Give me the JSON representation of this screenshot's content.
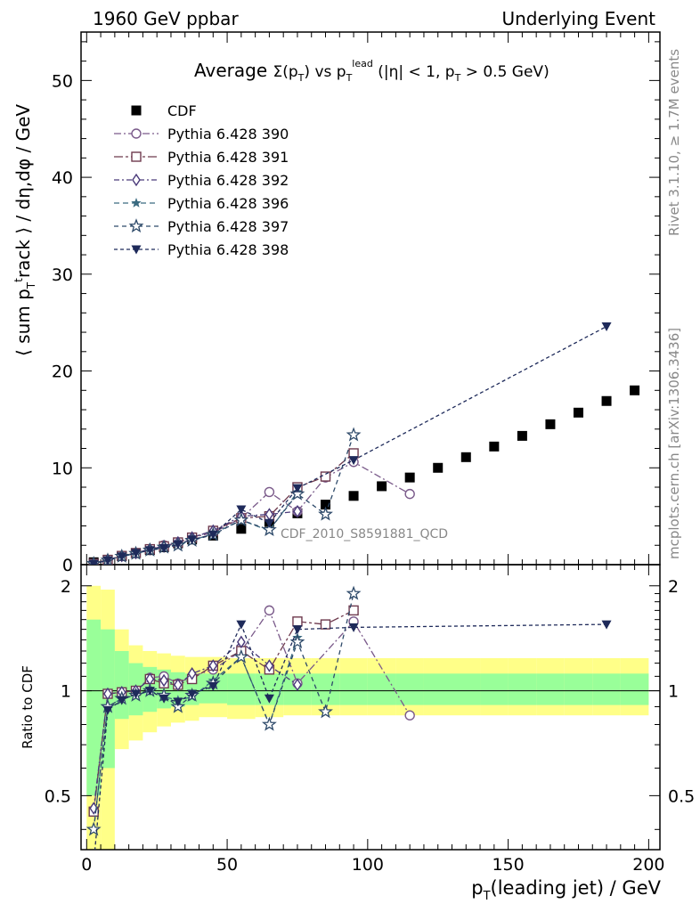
{
  "header": {
    "left": "1960 GeV ppbar",
    "right": "Underlying Event"
  },
  "side_labels": {
    "rivet": "Rivet 3.1.10, ≥ 1.7M events",
    "mcplots": "mcplots.cern.ch [arXiv:1306.3436]"
  },
  "chart_data": [
    {
      "type": "scatter",
      "title": "Average Σ(pT) vs pT^lead (|η| < 1, pT > 0.5 GeV)",
      "ylabel": "⟨ sum pT track ⟩ / dη,dφ / GeV",
      "xlim": [
        -2,
        204
      ],
      "ylim": [
        0,
        55
      ],
      "yticks": [
        0,
        10,
        20,
        30,
        40,
        50
      ],
      "legend_position": "top-left",
      "watermark": "CDF_2010_S8591881_QCD",
      "series": [
        {
          "name": "CDF",
          "color": "#000000",
          "marker": "filled-square",
          "x": [
            2.5,
            7.5,
            12.5,
            17.5,
            22.5,
            27.5,
            32.5,
            37.5,
            45,
            55,
            65,
            75,
            85,
            95,
            105,
            115,
            125,
            135,
            145,
            155,
            165,
            175,
            185,
            195
          ],
          "y": [
            0.25,
            0.5,
            0.9,
            1.2,
            1.5,
            1.8,
            2.2,
            2.6,
            3.0,
            3.7,
            4.4,
            5.3,
            6.2,
            7.1,
            8.1,
            9.0,
            10.0,
            11.1,
            12.2,
            13.3,
            14.5,
            15.7,
            16.9,
            18.0
          ]
        },
        {
          "name": "Pythia 6.428 390",
          "color": "#7a5a8a",
          "marker": "open-circle",
          "dash": "8,3,2,3",
          "x": [
            2.5,
            7.5,
            12.5,
            17.5,
            22.5,
            27.5,
            32.5,
            37.5,
            45,
            55,
            65,
            75,
            85,
            95,
            115
          ],
          "y": [
            0.1,
            0.5,
            0.9,
            1.2,
            1.6,
            2.0,
            2.3,
            2.8,
            3.3,
            4.8,
            7.5,
            5.5,
            9.0,
            10.6,
            7.3
          ]
        },
        {
          "name": "Pythia 6.428 391",
          "color": "#6e3a4e",
          "marker": "open-square",
          "dash": "10,3,3,3",
          "x": [
            2.5,
            7.5,
            12.5,
            17.5,
            22.5,
            27.5,
            32.5,
            37.5,
            45,
            55,
            65,
            75,
            85,
            95
          ],
          "y": [
            0.1,
            0.5,
            0.9,
            1.2,
            1.6,
            1.9,
            2.3,
            2.8,
            3.5,
            4.8,
            5.0,
            8.0,
            9.1,
            11.5
          ]
        },
        {
          "name": "Pythia 6.428 392",
          "color": "#4a3a7a",
          "marker": "open-diamond",
          "dash": "6,3,2,3",
          "x": [
            2.5,
            7.5,
            12.5,
            17.5,
            22.5,
            27.5,
            32.5,
            37.5,
            45,
            55,
            65,
            75
          ],
          "y": [
            0.1,
            0.5,
            0.9,
            1.2,
            1.6,
            1.9,
            2.3,
            2.8,
            3.5,
            5.0,
            5.2,
            5.5
          ]
        },
        {
          "name": "Pythia 6.428 396",
          "color": "#3a6a80",
          "marker": "filled-star",
          "dash": "6,4",
          "x": [
            2.5,
            7.5,
            12.5,
            17.5,
            22.5,
            27.5,
            32.5,
            37.5,
            45,
            55,
            65,
            75
          ],
          "y": [
            0.1,
            0.45,
            0.85,
            1.15,
            1.5,
            1.8,
            2.1,
            2.5,
            3.2,
            4.6,
            3.5,
            7.5
          ]
        },
        {
          "name": "Pythia 6.428 397",
          "color": "#2e4a6a",
          "marker": "open-star",
          "dash": "5,4",
          "x": [
            2.5,
            7.5,
            12.5,
            17.5,
            22.5,
            27.5,
            32.5,
            37.5,
            45,
            55,
            65,
            75,
            85,
            95
          ],
          "y": [
            0.1,
            0.45,
            0.85,
            1.15,
            1.5,
            1.8,
            2.0,
            2.5,
            3.1,
            4.6,
            3.6,
            7.3,
            5.2,
            13.4
          ]
        },
        {
          "name": "Pythia 6.428 398",
          "color": "#1e2a5a",
          "marker": "filled-triangle-down",
          "dash": "4,3",
          "x": [
            2.5,
            7.5,
            12.5,
            17.5,
            22.5,
            27.5,
            32.5,
            37.5,
            45,
            55,
            65,
            75,
            95,
            185
          ],
          "y": [
            0.08,
            0.45,
            0.85,
            1.2,
            1.5,
            1.7,
            2.1,
            2.6,
            3.1,
            5.7,
            4.3,
            7.9,
            10.8,
            24.6
          ]
        }
      ]
    },
    {
      "type": "scatter",
      "xlabel": "pT(leading jet) / GeV",
      "ylabel": "Ratio to CDF",
      "xlim": [
        -2,
        204
      ],
      "ylim": [
        0.35,
        2.3
      ],
      "yticks": [
        0.5,
        1,
        2
      ],
      "xticks": [
        0,
        50,
        100,
        150,
        200
      ],
      "bands": {
        "x_edges": [
          0,
          5,
          10,
          15,
          20,
          25,
          30,
          35,
          40,
          50,
          60,
          70,
          80,
          90,
          100,
          110,
          120,
          130,
          140,
          150,
          160,
          170,
          180,
          190,
          200
        ],
        "inner_low": [
          0.5,
          0.6,
          0.83,
          0.85,
          0.87,
          0.89,
          0.9,
          0.91,
          0.92,
          0.91,
          0.91,
          0.91,
          0.91,
          0.91,
          0.91,
          0.91,
          0.91,
          0.91,
          0.91,
          0.91,
          0.91,
          0.91,
          0.91,
          0.91
        ],
        "inner_high": [
          1.6,
          1.5,
          1.3,
          1.2,
          1.17,
          1.15,
          1.13,
          1.12,
          1.12,
          1.12,
          1.12,
          1.12,
          1.12,
          1.12,
          1.12,
          1.12,
          1.12,
          1.12,
          1.12,
          1.12,
          1.12,
          1.12,
          1.12,
          1.12
        ],
        "outer_low": [
          0.3,
          0.3,
          0.68,
          0.72,
          0.76,
          0.79,
          0.81,
          0.82,
          0.84,
          0.83,
          0.84,
          0.85,
          0.85,
          0.85,
          0.85,
          0.85,
          0.85,
          0.85,
          0.85,
          0.85,
          0.85,
          0.85,
          0.85,
          0.85
        ],
        "outer_high": [
          2.0,
          1.95,
          1.5,
          1.35,
          1.3,
          1.28,
          1.26,
          1.25,
          1.25,
          1.24,
          1.24,
          1.24,
          1.24,
          1.24,
          1.24,
          1.24,
          1.24,
          1.24,
          1.24,
          1.24,
          1.24,
          1.24,
          1.24,
          1.24
        ]
      },
      "series": [
        {
          "name": "Pythia 6.428 390",
          "color": "#7a5a8a",
          "marker": "open-circle",
          "dash": "8,3,2,3",
          "x": [
            2.5,
            7.5,
            12.5,
            17.5,
            22.5,
            27.5,
            32.5,
            37.5,
            45,
            55,
            65,
            75,
            95,
            115
          ],
          "y": [
            0.45,
            0.98,
            0.99,
            1.0,
            1.09,
            1.1,
            1.05,
            1.1,
            1.15,
            1.3,
            1.7,
            1.05,
            1.58,
            0.85
          ]
        },
        {
          "name": "Pythia 6.428 391",
          "color": "#6e3a4e",
          "marker": "open-square",
          "dash": "10,3,3,3",
          "x": [
            2.5,
            7.5,
            12.5,
            17.5,
            22.5,
            27.5,
            32.5,
            37.5,
            45,
            55,
            65,
            75,
            85,
            95
          ],
          "y": [
            0.45,
            0.98,
            0.99,
            1.0,
            1.08,
            1.05,
            1.04,
            1.08,
            1.18,
            1.3,
            1.15,
            1.58,
            1.55,
            1.7
          ]
        },
        {
          "name": "Pythia 6.428 392",
          "color": "#4a3a7a",
          "marker": "open-diamond",
          "dash": "6,3,2,3",
          "x": [
            2.5,
            7.5,
            12.5,
            17.5,
            22.5,
            27.5,
            32.5,
            37.5,
            45,
            55,
            65,
            75
          ],
          "y": [
            0.46,
            0.98,
            0.99,
            1.0,
            1.08,
            1.07,
            1.04,
            1.12,
            1.18,
            1.38,
            1.18,
            1.04
          ]
        },
        {
          "name": "Pythia 6.428 396",
          "color": "#3a6a80",
          "marker": "filled-star",
          "dash": "6,4",
          "x": [
            2.5,
            7.5,
            12.5,
            17.5,
            22.5,
            27.5,
            32.5,
            37.5,
            45,
            55,
            65,
            75
          ],
          "y": [
            0.4,
            0.9,
            0.95,
            0.97,
            1.0,
            0.96,
            0.94,
            0.96,
            1.07,
            1.25,
            0.8,
            1.42
          ]
        },
        {
          "name": "Pythia 6.428 397",
          "color": "#2e4a6a",
          "marker": "open-star",
          "dash": "5,4",
          "x": [
            2.5,
            7.5,
            12.5,
            17.5,
            22.5,
            27.5,
            32.5,
            37.5,
            45,
            55,
            65,
            75,
            85,
            95
          ],
          "y": [
            0.4,
            0.9,
            0.95,
            0.97,
            1.0,
            0.97,
            0.9,
            0.97,
            1.05,
            1.25,
            0.8,
            1.38,
            0.87,
            1.9
          ]
        },
        {
          "name": "Pythia 6.428 398",
          "color": "#1e2a5a",
          "marker": "filled-triangle-down",
          "dash": "4,3",
          "x": [
            2.5,
            7.5,
            12.5,
            17.5,
            22.5,
            27.5,
            32.5,
            37.5,
            45,
            55,
            65,
            75,
            95,
            185
          ],
          "y": [
            0.32,
            0.88,
            0.94,
            0.98,
            1.0,
            0.95,
            0.93,
            0.98,
            1.03,
            1.55,
            0.95,
            1.5,
            1.52,
            1.55
          ]
        }
      ]
    }
  ]
}
